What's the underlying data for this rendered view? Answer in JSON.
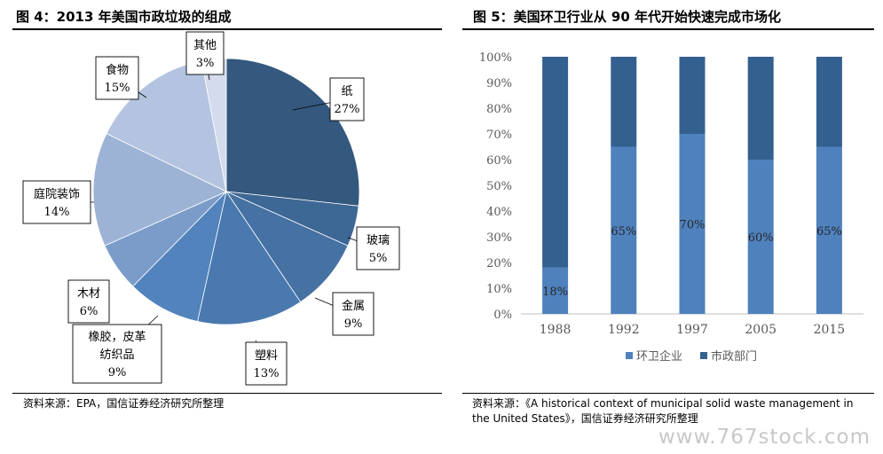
{
  "left": {
    "title": "图 4：2013 年美国市政垃圾的组成",
    "source": "资料来源：EPA，国信证券经济研究所整理"
  },
  "right": {
    "title": "图 5：美国环卫行业从 90 年代开始快速完成市场化",
    "source_line1": "资料来源：《A historical context of municipal solid waste management in",
    "source_line2": "the United States》，国信证券经济研究所整理"
  },
  "watermark": "www.767stock.com",
  "chart_data": [
    {
      "type": "pie",
      "title": "图 4：2013 年美国市政垃圾的组成",
      "start": "12 o'clock",
      "direction": "clockwise",
      "slices": [
        {
          "label": "纸",
          "value": 27,
          "value_label": "27%",
          "color": "#34587e"
        },
        {
          "label": "玻璃",
          "value": 5,
          "value_label": "5%",
          "color": "#3d6794"
        },
        {
          "label": "金属",
          "value": 9,
          "value_label": "9%",
          "color": "#4571a3"
        },
        {
          "label": "塑料",
          "value": 13,
          "value_label": "13%",
          "color": "#4a79b0"
        },
        {
          "label": "橡胶，皮革纺织品",
          "label_lines": [
            "橡胶，皮革",
            "纺织品"
          ],
          "value": 9,
          "value_label": "9%",
          "color": "#5283bd"
        },
        {
          "label": "木材",
          "value": 6,
          "value_label": "6%",
          "color": "#7b9cc8"
        },
        {
          "label": "庭院装饰",
          "value": 14,
          "value_label": "14%",
          "color": "#9db3d6"
        },
        {
          "label": "食物",
          "value": 15,
          "value_label": "15%",
          "color": "#b4c4e0"
        },
        {
          "label": "其他",
          "value": 3,
          "value_label": "3%",
          "color": "#d3dbec"
        }
      ]
    },
    {
      "type": "bar",
      "stacked": true,
      "title": "图 5：美国环卫行业从 90 年代开始快速完成市场化",
      "categories": [
        "1988",
        "1992",
        "1997",
        "2005",
        "2015"
      ],
      "series": [
        {
          "name": "环卫企业",
          "values": [
            18,
            65,
            70,
            60,
            65
          ],
          "labels": [
            "18%",
            "65%",
            "70%",
            "60%",
            "65%"
          ],
          "color": "#4f81bd"
        },
        {
          "name": "市政部门",
          "values": [
            82,
            35,
            30,
            40,
            35
          ],
          "color": "#34608f"
        }
      ],
      "ylim": [
        0,
        100
      ],
      "yticks": [
        "0%",
        "10%",
        "20%",
        "30%",
        "40%",
        "50%",
        "60%",
        "70%",
        "80%",
        "90%",
        "100%"
      ],
      "grid": false,
      "legend": "bottom"
    }
  ]
}
